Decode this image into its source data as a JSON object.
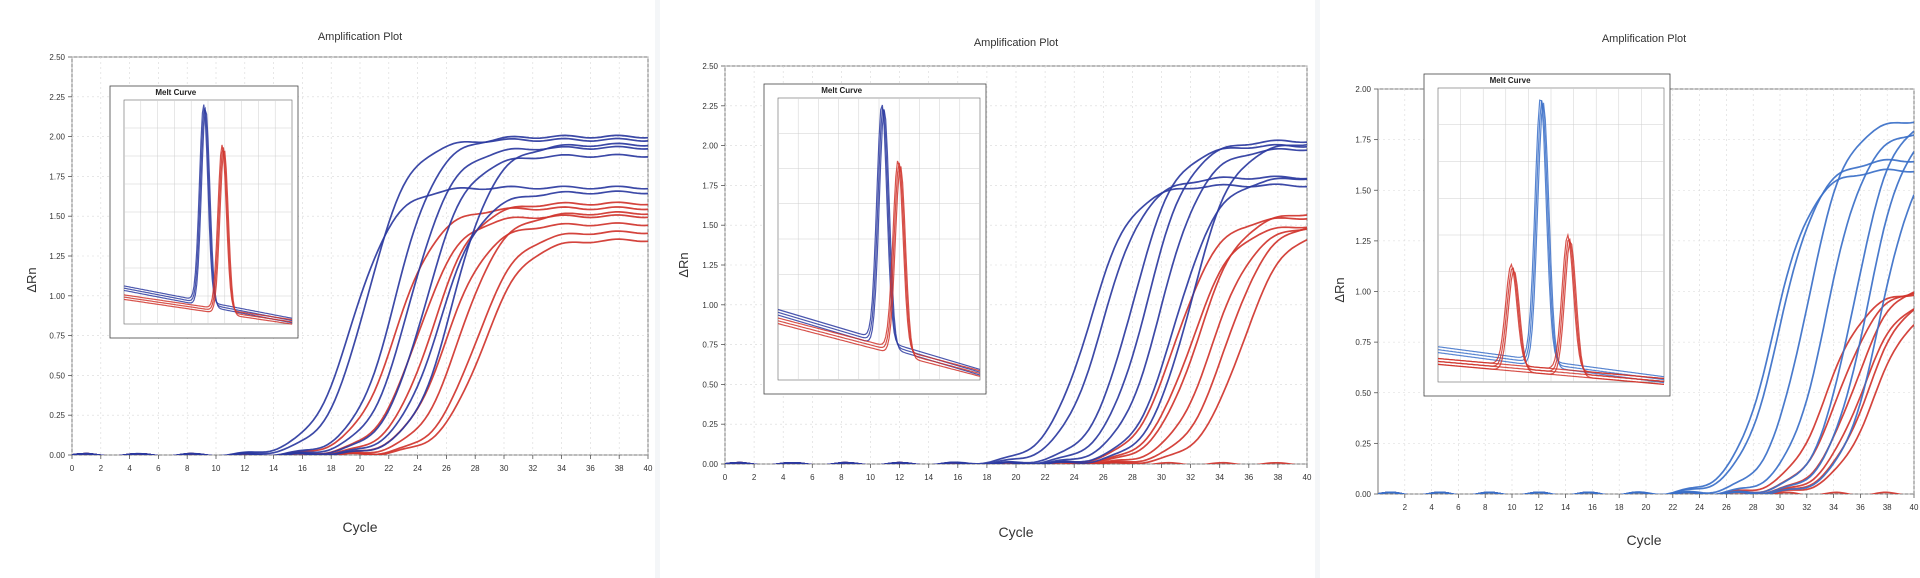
{
  "chart_data": [
    {
      "type": "line",
      "title": "Amplification Plot",
      "xlabel": "Cycle",
      "ylabel": "ΔRn",
      "xlim": [
        0,
        40
      ],
      "ylim": [
        0,
        2.5
      ],
      "x_ticks": [
        "0",
        "2",
        "4",
        "6",
        "8",
        "10",
        "12",
        "14",
        "16",
        "18",
        "20",
        "22",
        "24",
        "26",
        "28",
        "30",
        "32",
        "34",
        "36",
        "38",
        "40"
      ],
      "y_ticks": [
        "0.00",
        "0.25",
        "0.50",
        "0.75",
        "1.00",
        "1.25",
        "1.50",
        "1.75",
        "2.00",
        "2.25",
        "2.50"
      ],
      "grid": true,
      "series_colors": {
        "blue": "#2b3aa0",
        "red": "#d0342c"
      },
      "curves": {
        "blue": [
          {
            "ct": 19.5,
            "plateau": 1.68
          },
          {
            "ct": 20.5,
            "plateau": 1.98
          },
          {
            "ct": 22.5,
            "plateau": 2.0
          },
          {
            "ct": 23.5,
            "plateau": 1.93
          },
          {
            "ct": 24.5,
            "plateau": 1.88
          },
          {
            "ct": 25.5,
            "plateau": 1.65
          },
          {
            "ct": 26.5,
            "plateau": 1.95
          }
        ],
        "red": [
          {
            "ct": 22.5,
            "plateau": 1.55
          },
          {
            "ct": 24.0,
            "plateau": 1.5
          },
          {
            "ct": 25.0,
            "plateau": 1.58
          },
          {
            "ct": 26.0,
            "plateau": 1.45
          },
          {
            "ct": 27.0,
            "plateau": 1.52
          },
          {
            "ct": 28.0,
            "plateau": 1.4
          },
          {
            "ct": 28.5,
            "plateau": 1.35
          }
        ]
      },
      "inset": {
        "type": "line",
        "title": "Melt Curve",
        "peaks": [
          {
            "color": "blue",
            "peak_x": 0.48,
            "peak_height": 0.98,
            "baseline": 0.17
          },
          {
            "color": "red",
            "peak_x": 0.59,
            "peak_height": 0.8,
            "baseline": 0.13
          }
        ]
      }
    },
    {
      "type": "line",
      "title": "Amplification Plot",
      "xlabel": "Cycle",
      "ylabel": "ΔRn",
      "xlim": [
        0,
        40
      ],
      "ylim": [
        0,
        2.5
      ],
      "x_ticks": [
        "0",
        "2",
        "4",
        "6",
        "8",
        "10",
        "12",
        "14",
        "16",
        "18",
        "20",
        "22",
        "24",
        "26",
        "28",
        "30",
        "32",
        "34",
        "36",
        "38",
        "40"
      ],
      "y_ticks": [
        "0.00",
        "0.25",
        "0.50",
        "0.75",
        "1.00",
        "1.25",
        "1.50",
        "1.75",
        "2.00",
        "2.25",
        "2.50"
      ],
      "grid": true,
      "series_colors": {
        "blue": "#2b3aa0",
        "red": "#d0342c"
      },
      "curves": {
        "blue": [
          {
            "ct": 25.0,
            "plateau": 1.75
          },
          {
            "ct": 26.0,
            "plateau": 1.8
          },
          {
            "ct": 28.0,
            "plateau": 2.0
          },
          {
            "ct": 29.0,
            "plateau": 2.03
          },
          {
            "ct": 30.0,
            "plateau": 1.98
          },
          {
            "ct": 31.0,
            "plateau": 1.8
          },
          {
            "ct": 32.0,
            "plateau": 2.02
          }
        ],
        "red": [
          {
            "ct": 31.0,
            "plateau": 1.55
          },
          {
            "ct": 32.0,
            "plateau": 1.5
          },
          {
            "ct": 32.5,
            "plateau": 1.58
          },
          {
            "ct": 33.5,
            "plateau": 1.5
          },
          {
            "ct": 34.5,
            "plateau": 1.52
          },
          {
            "ct": 35.5,
            "plateau": 1.48
          },
          {
            "ct": 55.0,
            "plateau": 0.0
          }
        ]
      },
      "inset": {
        "type": "line",
        "title": "Melt Curve",
        "peaks": [
          {
            "color": "blue",
            "peak_x": 0.52,
            "peak_height": 0.98,
            "baseline": 0.25
          },
          {
            "color": "red",
            "peak_x": 0.6,
            "peak_height": 0.78,
            "baseline": 0.22
          }
        ]
      }
    },
    {
      "type": "line",
      "title": "Amplification Plot",
      "xlabel": "Cycle",
      "ylabel": "ΔRn",
      "xlim": [
        0,
        40
      ],
      "ylim": [
        0,
        2.0
      ],
      "x_ticks": [
        "2",
        "4",
        "6",
        "8",
        "10",
        "12",
        "14",
        "16",
        "18",
        "20",
        "22",
        "24",
        "26",
        "28",
        "30",
        "32",
        "34",
        "36",
        "38",
        "40"
      ],
      "y_ticks": [
        "0.00",
        "0.25",
        "0.50",
        "0.75",
        "1.00",
        "1.25",
        "1.50",
        "1.75",
        "2.00"
      ],
      "grid": true,
      "series_colors": {
        "blue": "#3a6fc8",
        "red": "#d0342c"
      },
      "curves": {
        "blue": [
          {
            "ct": 29.5,
            "plateau": 1.6
          },
          {
            "ct": 30.0,
            "plateau": 1.65
          },
          {
            "ct": 32.0,
            "plateau": 1.85
          },
          {
            "ct": 33.5,
            "plateau": 1.8
          },
          {
            "ct": 35.5,
            "plateau": 1.88
          },
          {
            "ct": 36.5,
            "plateau": 1.85
          },
          {
            "ct": 37.5,
            "plateau": 1.75
          }
        ],
        "red": [
          {
            "ct": 33.5,
            "plateau": 1.0
          },
          {
            "ct": 34.5,
            "plateau": 1.02
          },
          {
            "ct": 35.5,
            "plateau": 1.05
          },
          {
            "ct": 36.0,
            "plateau": 0.98
          },
          {
            "ct": 36.5,
            "plateau": 1.0
          },
          {
            "ct": 37.0,
            "plateau": 0.95
          },
          {
            "ct": 55.0,
            "plateau": 0.0
          }
        ]
      },
      "inset": {
        "type": "line",
        "title": "Melt Curve",
        "peaks": [
          {
            "color": "blue",
            "peak_x": 0.46,
            "peak_height": 0.97,
            "baseline": 0.12
          },
          {
            "color": "red",
            "peak_x": 0.58,
            "peak_height": 0.5,
            "baseline": 0.08
          },
          {
            "color": "red",
            "peak_x": 0.33,
            "peak_height": 0.4,
            "baseline": 0.08
          }
        ]
      }
    }
  ]
}
